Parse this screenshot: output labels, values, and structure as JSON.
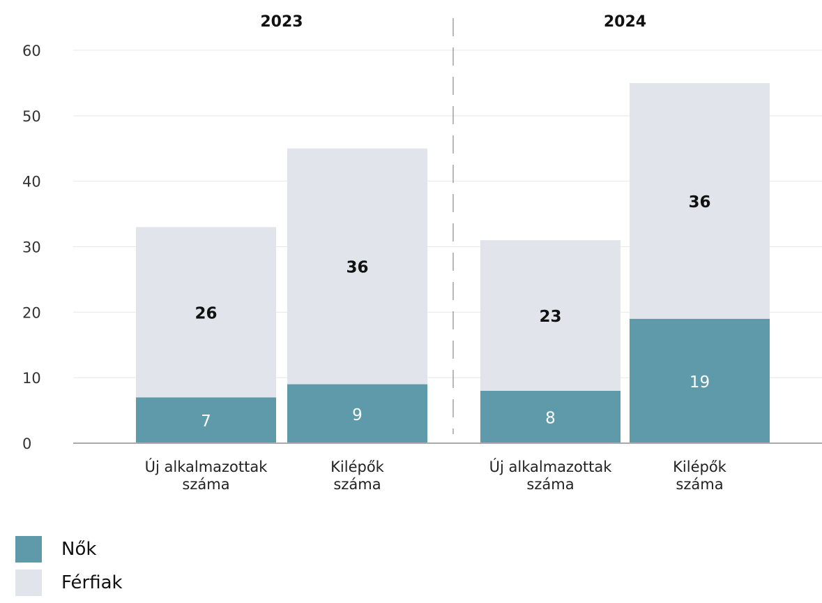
{
  "chart_data": {
    "type": "bar",
    "stacked": true,
    "ylim": [
      0,
      60
    ],
    "yticks": [
      0,
      10,
      20,
      30,
      40,
      50,
      60
    ],
    "grid": true,
    "groups": [
      {
        "title": "2023",
        "categories": [
          {
            "label_lines": [
              "Új alkalmazottak",
              "száma"
            ],
            "values": [
              7,
              26
            ]
          },
          {
            "label_lines": [
              "Kilépők",
              "száma"
            ],
            "values": [
              9,
              36
            ]
          }
        ]
      },
      {
        "title": "2024",
        "categories": [
          {
            "label_lines": [
              "Új alkalmazottak",
              "száma"
            ],
            "values": [
              8,
              23
            ]
          },
          {
            "label_lines": [
              "Kilépők",
              "száma"
            ],
            "values": [
              19,
              36
            ]
          }
        ]
      }
    ],
    "series": [
      {
        "name": "Nők",
        "color": "#5e9aa9"
      },
      {
        "name": "Férfiak",
        "color": "#e1e4ea"
      }
    ],
    "legend_position": "bottom-left"
  }
}
